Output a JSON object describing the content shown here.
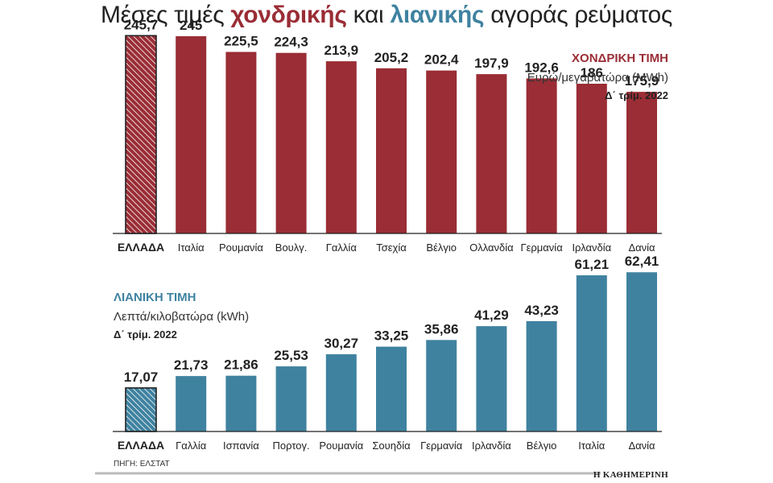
{
  "title": {
    "part1": "Μέσες τιμές ",
    "part2": "χονδρικής",
    "part3": " και ",
    "part4": "λιανικής",
    "part5": " αγοράς ρεύματος"
  },
  "colors": {
    "wholesale": "#9a2d35",
    "retail": "#3f82a0",
    "greece_hatch": "#222222"
  },
  "source": "ΠΗΓΗ: ΕΛΣΤΑΤ",
  "brand": "Η ΚΑΘΗΜΕΡΙΝΗ",
  "chart_data": [
    {
      "type": "bar",
      "title": "ΧΟΝΔΡΙΚΗ ΤΙΜΗ",
      "unit": "Ευρώ/μεγαβατώρα (MWh)",
      "period": "Δ΄ τρίμ. 2022",
      "categories": [
        "ΕΛΛΑΔΑ",
        "Ιταλία",
        "Ρουμανία",
        "Βουλγ.",
        "Γαλλία",
        "Τσεχία",
        "Βέλγιο",
        "Ολλανδία",
        "Γερμανία",
        "Ιρλανδία",
        "Δανία"
      ],
      "values": [
        245.7,
        245,
        225.5,
        224.3,
        213.9,
        205.2,
        202.4,
        197.9,
        192.6,
        186,
        175.9
      ],
      "value_labels": [
        "245,7",
        "245",
        "225,5",
        "224,3",
        "213,9",
        "205,2",
        "202,4",
        "197,9",
        "192,6",
        "186",
        "175,9"
      ],
      "ylim": [
        0,
        260
      ]
    },
    {
      "type": "bar",
      "title": "ΛΙΑΝΙΚΗ ΤΙΜΗ",
      "unit": "Λεπτά/κιλοβατώρα (kWh)",
      "period": "Δ΄ τρίμ. 2022",
      "categories": [
        "ΕΛΛΑΔΑ",
        "Γαλλία",
        "Ισπανία",
        "Πορτογ.",
        "Ρουμανία",
        "Σουηδία",
        "Γερμανία",
        "Ιρλανδία",
        "Βέλγιο",
        "Ιταλία",
        "Δανία"
      ],
      "values": [
        17.07,
        21.73,
        21.86,
        25.53,
        30.27,
        33.25,
        35.86,
        41.29,
        43.23,
        61.21,
        62.41
      ],
      "value_labels": [
        "17,07",
        "21,73",
        "21,86",
        "25,53",
        "30,27",
        "33,25",
        "35,86",
        "41,29",
        "43,23",
        "61,21",
        "62,41"
      ],
      "ylim": [
        0,
        65
      ]
    }
  ]
}
